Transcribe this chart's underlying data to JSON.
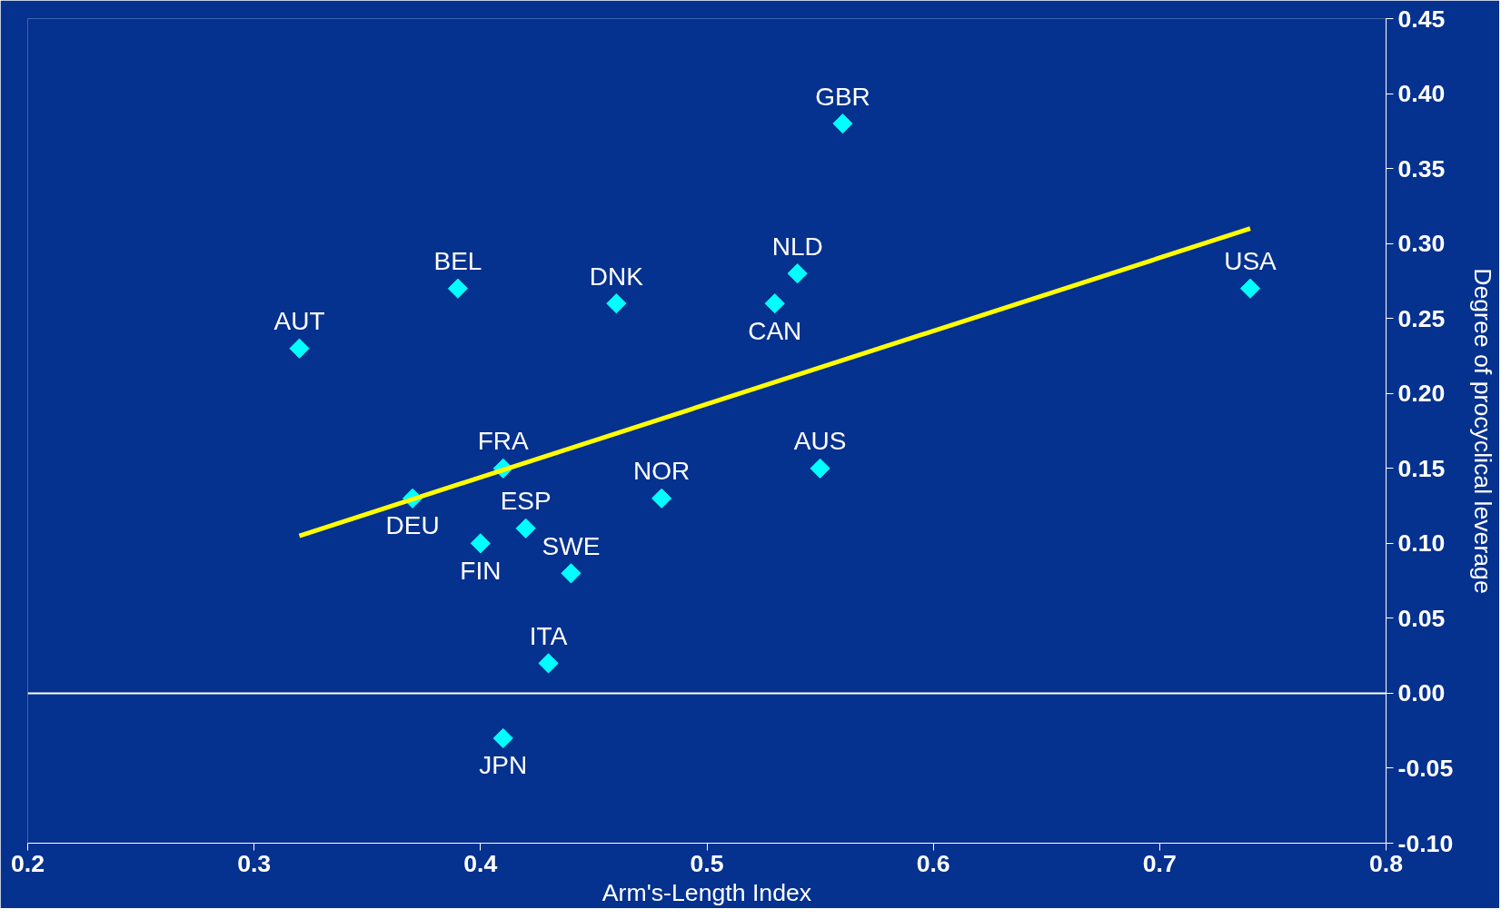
{
  "chart_data": {
    "type": "scatter",
    "xlabel": "Arm's-Length Index",
    "ylabel": "Degree of procyclical leverage",
    "grid": false,
    "xlim": [
      0.2,
      0.8
    ],
    "xticks": [
      {
        "value": 0.2,
        "label": "0.2"
      },
      {
        "value": 0.3,
        "label": "0.3"
      },
      {
        "value": 0.4,
        "label": "0.4"
      },
      {
        "value": 0.5,
        "label": "0.5"
      },
      {
        "value": 0.6,
        "label": "0.6"
      },
      {
        "value": 0.7,
        "label": "0.7"
      },
      {
        "value": 0.8,
        "label": "0.8"
      }
    ],
    "ylim": [
      -0.1,
      0.45
    ],
    "yticks": [
      {
        "value": -0.1,
        "label": "-0.10"
      },
      {
        "value": -0.05,
        "label": "-0.05"
      },
      {
        "value": 0,
        "label": "0.00"
      },
      {
        "value": 0.05,
        "label": "0.05"
      },
      {
        "value": 0.1,
        "label": "0.10"
      },
      {
        "value": 0.15,
        "label": "0.15"
      },
      {
        "value": 0.2,
        "label": "0.20"
      },
      {
        "value": 0.25,
        "label": "0.25"
      },
      {
        "value": 0.3,
        "label": "0.30"
      },
      {
        "value": 0.35,
        "label": "0.35"
      },
      {
        "value": 0.4,
        "label": "0.40"
      },
      {
        "value": 0.45,
        "label": "0.45"
      }
    ],
    "series": [
      {
        "marker": "diamond",
        "color": "#00ffff",
        "x": [
          0.56,
          0.54,
          0.53,
          0.46,
          0.39,
          0.32,
          0.74,
          0.41,
          0.37,
          0.42,
          0.4,
          0.48,
          0.55,
          0.44,
          0.43,
          0.41
        ],
        "values": [
          0.38,
          0.28,
          0.26,
          0.26,
          0.27,
          0.23,
          0.27,
          0.15,
          0.13,
          0.11,
          0.1,
          0.13,
          0.15,
          0.08,
          0.02,
          -0.03
        ]
      },
      {
        "type": "line",
        "marker": "none",
        "color": "#ffff00",
        "x": [
          0.32,
          0.74
        ],
        "values": [
          0.105,
          0.31
        ]
      }
    ],
    "ref_lines": [
      {
        "axis": "y",
        "value": 0,
        "color": "#ffffff"
      }
    ],
    "annotations": [
      {
        "text": "GBR",
        "x": 0.56,
        "y": 0.38
      },
      {
        "text": "NLD",
        "x": 0.54,
        "y": 0.28
      },
      {
        "text": "CAN",
        "x": 0.53,
        "y": 0.26
      },
      {
        "text": "DNK",
        "x": 0.46,
        "y": 0.26
      },
      {
        "text": "BEL",
        "x": 0.39,
        "y": 0.27
      },
      {
        "text": "AUT",
        "x": 0.32,
        "y": 0.23
      },
      {
        "text": "USA",
        "x": 0.74,
        "y": 0.27
      },
      {
        "text": "FRA",
        "x": 0.41,
        "y": 0.15
      },
      {
        "text": "DEU",
        "x": 0.37,
        "y": 0.13
      },
      {
        "text": "ESP",
        "x": 0.42,
        "y": 0.11
      },
      {
        "text": "FIN",
        "x": 0.4,
        "y": 0.1
      },
      {
        "text": "NOR",
        "x": 0.48,
        "y": 0.13
      },
      {
        "text": "AUS",
        "x": 0.55,
        "y": 0.15
      },
      {
        "text": "SWE",
        "x": 0.44,
        "y": 0.08
      },
      {
        "text": "ITA",
        "x": 0.43,
        "y": 0.02
      },
      {
        "text": "JPN",
        "x": 0.41,
        "y": -0.03
      }
    ]
  }
}
